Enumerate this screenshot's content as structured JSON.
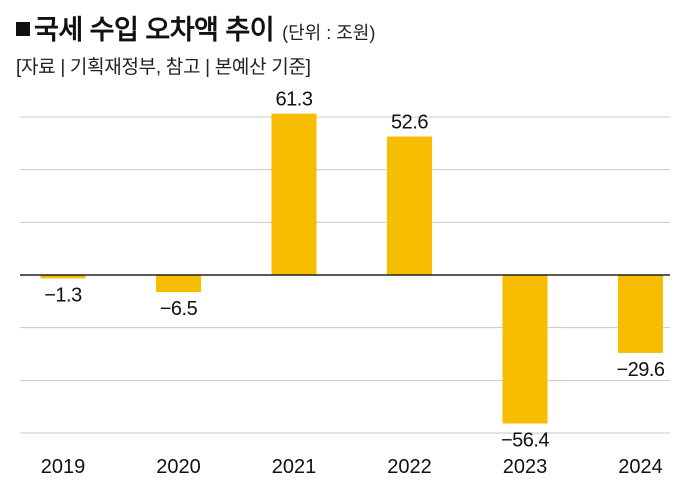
{
  "header": {
    "title": "국세 수입 오차액 추이",
    "unit": "(단위 : 조원)",
    "source": "[자료 | 기획재정부, 참고 | 본예산 기준]"
  },
  "colors": {
    "bar": "#f7bd00",
    "grid": "#c8c8c8",
    "axis": "#222222"
  },
  "chart_data": {
    "type": "bar",
    "title": "국세 수입 오차액 추이",
    "unit": "조원",
    "categories": [
      "2019",
      "2020",
      "2021",
      "2022",
      "2023",
      "2024"
    ],
    "values": [
      -1.3,
      -6.5,
      61.3,
      52.6,
      -56.4,
      -29.6
    ],
    "value_labels": [
      "−1.3",
      "−6.5",
      "61.3",
      "52.6",
      "−56.4",
      "−29.6"
    ],
    "ylim": [
      -60,
      60
    ],
    "gridlines": [
      -60,
      -40,
      -20,
      0,
      20,
      40,
      60
    ],
    "grid": true,
    "legend": "none"
  }
}
